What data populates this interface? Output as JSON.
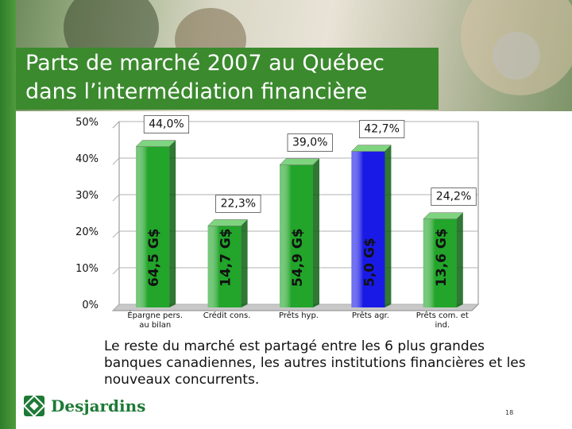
{
  "title": {
    "line1": "Parts de marché 2007 au Québec",
    "line2": "dans l’intermédiation financière"
  },
  "caption": "Le reste du marché est partagé entre les 6 plus grandes banques canadiennes, les autres institutions financières et les nouveaux concurrents.",
  "logo": {
    "text": "Desjardins",
    "icon": "desjardins-logo-icon"
  },
  "page_number": "18",
  "colors": {
    "green": "#22a52a",
    "blue": "#1a1ae6",
    "title_bg": "#3b8a2e"
  },
  "chart_data": {
    "type": "bar",
    "categories": [
      [
        "Épargne pers.",
        "au bilan"
      ],
      [
        "Crédit cons."
      ],
      [
        "Prêts hyp."
      ],
      [
        "Prêts agr."
      ],
      [
        "Prêts com. et",
        "ind."
      ]
    ],
    "values": [
      44.0,
      22.3,
      39.0,
      42.7,
      24.2
    ],
    "value_labels": [
      "44,0%",
      "22,3%",
      "39,0%",
      "42,7%",
      "24,2%"
    ],
    "amount_labels": [
      "64,5 G$",
      "14,7 G$",
      "54,9 G$",
      "5,0 G$",
      "13,6 G$"
    ],
    "bar_colors": [
      "#22a52a",
      "#22a52a",
      "#22a52a",
      "#1a1ae6",
      "#22a52a"
    ],
    "yticks": [
      "0%",
      "10%",
      "20%",
      "30%",
      "40%",
      "50%"
    ],
    "ylim": [
      0,
      50
    ],
    "grid": true
  }
}
